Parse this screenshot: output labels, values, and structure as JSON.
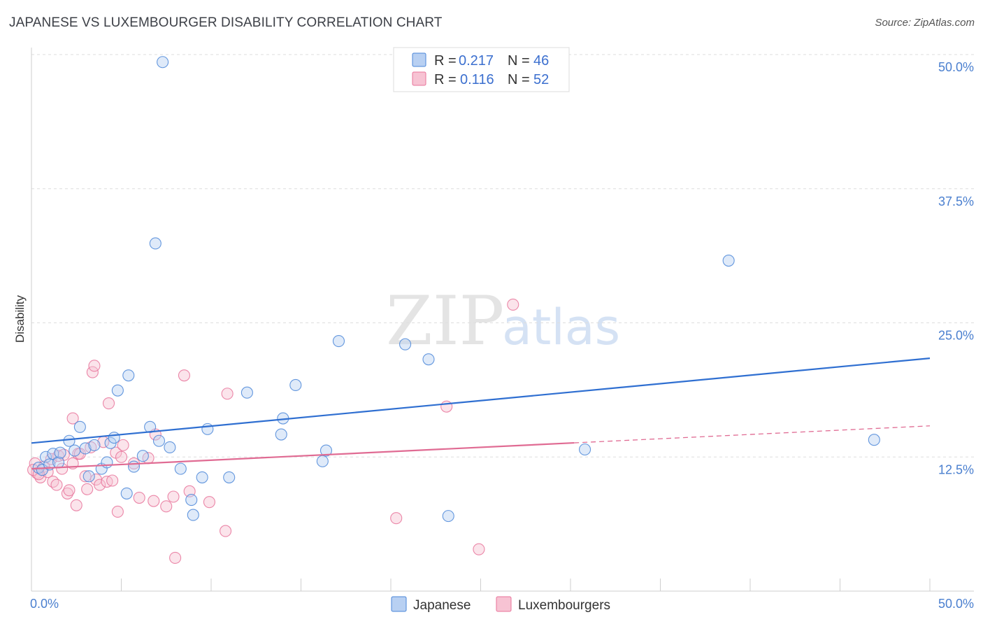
{
  "chart_data": {
    "type": "scatter",
    "title": "JAPANESE VS LUXEMBOURGER DISABILITY CORRELATION CHART",
    "source": "Source: ZipAtlas.com",
    "ylabel": "Disability",
    "xlim": [
      0,
      50
    ],
    "ylim": [
      0,
      50
    ],
    "x_tick_labels": [
      "0.0%",
      "50.0%"
    ],
    "y_ticks": [
      12.5,
      25.0,
      37.5,
      50.0
    ],
    "y_tick_labels": [
      "12.5%",
      "25.0%",
      "37.5%",
      "50.0%"
    ],
    "grid": true,
    "watermark": {
      "zip": "ZIP",
      "atlas": "atlas"
    },
    "colors": {
      "japanese": "#4a86d8",
      "japanese_fill": "#b8d0f2",
      "luxembourgers": "#e8739a",
      "luxembourgers_fill": "#f7c3d3"
    },
    "legend": {
      "r_label": "R =",
      "n_label": "N =",
      "entries": [
        {
          "name": "Japanese",
          "r": "0.217",
          "n": "46"
        },
        {
          "name": "Luxembourgers",
          "r": "0.116",
          "n": "52"
        }
      ]
    },
    "series": [
      {
        "name": "Japanese",
        "trend": {
          "x0": 0,
          "y0": 13.8,
          "x1": 50,
          "y1": 21.7,
          "dash_from": null
        },
        "points": [
          [
            0.4,
            11.5
          ],
          [
            0.6,
            11.3
          ],
          [
            0.8,
            12.5
          ],
          [
            1.0,
            11.8
          ],
          [
            1.2,
            12.8
          ],
          [
            1.5,
            12.0
          ],
          [
            1.6,
            12.9
          ],
          [
            2.1,
            14.0
          ],
          [
            2.4,
            13.1
          ],
          [
            2.7,
            15.3
          ],
          [
            3.0,
            13.3
          ],
          [
            3.2,
            10.7
          ],
          [
            3.5,
            13.6
          ],
          [
            3.9,
            11.4
          ],
          [
            4.2,
            12.0
          ],
          [
            4.4,
            13.8
          ],
          [
            4.6,
            14.3
          ],
          [
            4.8,
            18.7
          ],
          [
            5.3,
            9.1
          ],
          [
            5.4,
            20.1
          ],
          [
            5.7,
            11.6
          ],
          [
            6.2,
            12.6
          ],
          [
            6.6,
            15.3
          ],
          [
            7.1,
            14.0
          ],
          [
            7.3,
            49.3
          ],
          [
            6.9,
            32.4
          ],
          [
            7.7,
            13.4
          ],
          [
            8.3,
            11.4
          ],
          [
            8.9,
            8.5
          ],
          [
            9.0,
            7.1
          ],
          [
            9.5,
            10.6
          ],
          [
            9.8,
            15.1
          ],
          [
            11.0,
            10.6
          ],
          [
            12.0,
            18.5
          ],
          [
            13.9,
            14.6
          ],
          [
            14.0,
            16.1
          ],
          [
            14.7,
            19.2
          ],
          [
            16.2,
            12.1
          ],
          [
            16.4,
            13.1
          ],
          [
            17.1,
            23.3
          ],
          [
            20.8,
            23.0
          ],
          [
            22.1,
            21.6
          ],
          [
            23.2,
            7.0
          ],
          [
            30.8,
            13.2
          ],
          [
            38.8,
            30.8
          ],
          [
            46.9,
            14.1
          ]
        ]
      },
      {
        "name": "Luxembourgers",
        "trend": {
          "x0": 0,
          "y0": 11.4,
          "x1": 50,
          "y1": 15.4,
          "dash_from": 30.2
        },
        "points": [
          [
            0.2,
            11.9
          ],
          [
            0.3,
            11.0
          ],
          [
            0.5,
            10.6
          ],
          [
            0.7,
            11.6
          ],
          [
            0.9,
            11.1
          ],
          [
            1.1,
            12.3
          ],
          [
            1.2,
            10.2
          ],
          [
            1.5,
            12.6
          ],
          [
            1.7,
            11.4
          ],
          [
            1.8,
            12.7
          ],
          [
            2.0,
            9.1
          ],
          [
            2.1,
            9.4
          ],
          [
            2.3,
            11.9
          ],
          [
            2.3,
            16.1
          ],
          [
            2.6,
            12.8
          ],
          [
            2.5,
            8.0
          ],
          [
            3.0,
            10.7
          ],
          [
            3.1,
            9.5
          ],
          [
            3.4,
            20.4
          ],
          [
            3.5,
            21.0
          ],
          [
            3.6,
            10.4
          ],
          [
            3.8,
            9.9
          ],
          [
            4.0,
            13.9
          ],
          [
            4.2,
            10.2
          ],
          [
            4.3,
            17.5
          ],
          [
            4.5,
            10.3
          ],
          [
            4.7,
            12.9
          ],
          [
            4.8,
            7.4
          ],
          [
            5.0,
            12.5
          ],
          [
            5.1,
            13.6
          ],
          [
            5.7,
            11.9
          ],
          [
            6.0,
            8.7
          ],
          [
            6.5,
            12.4
          ],
          [
            6.8,
            8.4
          ],
          [
            6.9,
            14.6
          ],
          [
            7.5,
            7.9
          ],
          [
            7.9,
            8.8
          ],
          [
            8.0,
            3.1
          ],
          [
            8.5,
            20.1
          ],
          [
            8.8,
            9.3
          ],
          [
            9.9,
            8.3
          ],
          [
            10.8,
            5.6
          ],
          [
            10.9,
            18.4
          ],
          [
            20.3,
            6.8
          ],
          [
            23.1,
            17.2
          ],
          [
            24.9,
            3.9
          ],
          [
            26.8,
            26.7
          ],
          [
            0.1,
            11.3
          ],
          [
            0.4,
            10.9
          ],
          [
            1.4,
            9.9
          ],
          [
            2.7,
            12.8
          ],
          [
            3.3,
            13.4
          ]
        ]
      }
    ]
  }
}
